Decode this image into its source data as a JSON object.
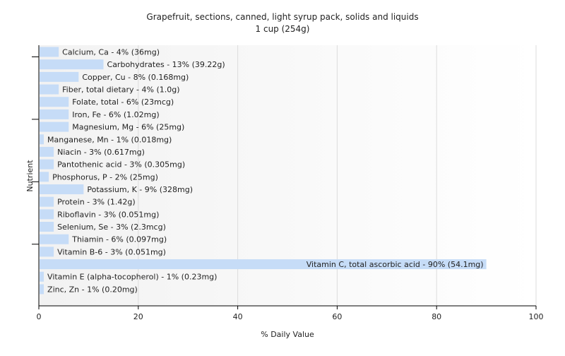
{
  "chart_data": {
    "type": "bar",
    "orientation": "horizontal",
    "title": "Grapefruit, sections, canned, light syrup pack, solids and liquids",
    "subtitle": "1 cup (254g)",
    "xlabel": "% Daily Value",
    "ylabel": "Nutrient",
    "xlim": [
      0,
      100
    ],
    "xticks": [
      "0",
      "20",
      "40",
      "60",
      "80",
      "100"
    ],
    "xtick_values": [
      0,
      20,
      40,
      60,
      80,
      100
    ],
    "grid": "vertical",
    "bar_color": "#c6dcf7",
    "categories": [
      "Calcium, Ca - 4% (36mg)",
      "Carbohydrates - 13% (39.22g)",
      "Copper, Cu - 8% (0.168mg)",
      "Fiber, total dietary - 4% (1.0g)",
      "Folate, total - 6% (23mcg)",
      "Iron, Fe - 6% (1.02mg)",
      "Magnesium, Mg - 6% (25mg)",
      "Manganese, Mn - 1% (0.018mg)",
      "Niacin - 3% (0.617mg)",
      "Pantothenic acid - 3% (0.305mg)",
      "Phosphorus, P - 2% (25mg)",
      "Potassium, K - 9% (328mg)",
      "Protein - 3% (1.42g)",
      "Riboflavin - 3% (0.051mg)",
      "Selenium, Se - 3% (2.3mcg)",
      "Thiamin - 6% (0.097mg)",
      "Vitamin B-6 - 3% (0.051mg)",
      "Vitamin C, total ascorbic acid - 90% (54.1mg)",
      "Vitamin E (alpha-tocopherol) - 1% (0.23mg)",
      "Zinc, Zn - 1% (0.20mg)"
    ],
    "values": [
      4,
      13,
      8,
      4,
      6,
      6,
      6,
      1,
      3,
      3,
      2,
      9,
      3,
      3,
      3,
      6,
      3,
      90,
      1,
      1
    ]
  }
}
